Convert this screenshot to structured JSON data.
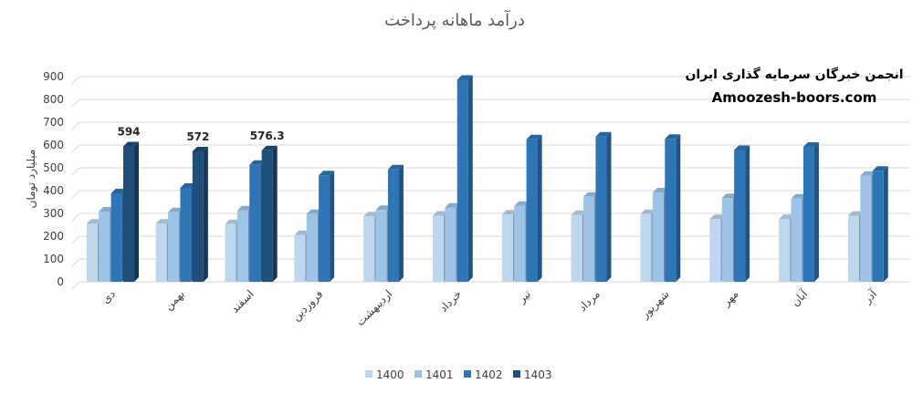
{
  "chart_data": {
    "type": "bar",
    "title": "درآمد ماهانه پرداخت",
    "xlabel": "",
    "ylabel": "میلیارد تومان",
    "ylim": [
      0,
      900
    ],
    "yticks": [
      0,
      100,
      200,
      300,
      400,
      500,
      600,
      700,
      800,
      900
    ],
    "grid": true,
    "legend_position": "bottom",
    "categories": [
      "دی",
      "بهمن",
      "اسفند",
      "فروردین",
      "اردیبهشت",
      "خرداد",
      "تیر",
      "مرداد",
      "شهریور",
      "مهر",
      "آبان",
      "آذر"
    ],
    "series": [
      {
        "name": "1400",
        "color": "#bdd7ee",
        "values": [
          255,
          255,
          253,
          205,
          287,
          290,
          295,
          293,
          297,
          275,
          275,
          290
        ]
      },
      {
        "name": "1401",
        "color": "#9dc3e6",
        "values": [
          308,
          305,
          313,
          297,
          315,
          325,
          333,
          373,
          392,
          367,
          365,
          465
        ]
      },
      {
        "name": "1402",
        "color": "#2e75b6",
        "values": [
          388,
          412,
          513,
          467,
          493,
          886,
          625,
          637,
          627,
          578,
          592,
          487
        ]
      },
      {
        "name": "1403",
        "color": "#1f4e79",
        "values": [
          594,
          572,
          576.3,
          null,
          null,
          null,
          null,
          null,
          null,
          null,
          null,
          null
        ]
      }
    ],
    "data_labels": [
      {
        "category_index": 0,
        "series_index": 3,
        "text": "594"
      },
      {
        "category_index": 1,
        "series_index": 3,
        "text": "572"
      },
      {
        "category_index": 2,
        "series_index": 3,
        "text": "576.3"
      }
    ]
  },
  "watermark": {
    "line1": "انجمن خبرگان سرمایه گذاری ایران",
    "line2": "Amoozesh-boors.com"
  }
}
